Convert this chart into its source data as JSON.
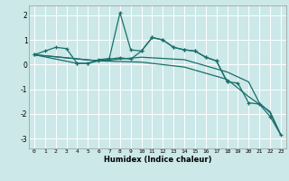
{
  "xlabel": "Humidex (Indice chaleur)",
  "bg_color": "#cce8e8",
  "grid_color": "#ffffff",
  "line_color": "#1a6e6a",
  "xlim": [
    -0.5,
    23.5
  ],
  "ylim": [
    -3.4,
    2.4
  ],
  "yticks": [
    -3,
    -2,
    -1,
    0,
    1,
    2
  ],
  "xticks": [
    0,
    1,
    2,
    3,
    4,
    5,
    6,
    7,
    8,
    9,
    10,
    11,
    12,
    13,
    14,
    15,
    16,
    17,
    18,
    19,
    20,
    21,
    22,
    23
  ],
  "series1_x": [
    0,
    1,
    2,
    3,
    4,
    5,
    6,
    7,
    8,
    9,
    10,
    11,
    12,
    13,
    14,
    15,
    16,
    17,
    18
  ],
  "series1_y": [
    0.4,
    0.55,
    0.7,
    0.65,
    0.05,
    0.05,
    0.2,
    0.25,
    2.1,
    0.6,
    0.55,
    1.1,
    1.0,
    0.7,
    0.6,
    0.55,
    0.3,
    0.15,
    -0.7
  ],
  "series2_x": [
    0,
    4,
    5,
    6,
    7,
    8,
    9,
    10,
    11,
    12,
    13,
    14,
    15,
    16,
    17,
    18,
    19,
    20,
    21,
    22,
    23
  ],
  "series2_y": [
    0.4,
    0.05,
    0.05,
    0.15,
    0.22,
    0.28,
    0.22,
    0.55,
    1.1,
    1.0,
    0.7,
    0.6,
    0.55,
    0.3,
    0.15,
    -0.7,
    -0.75,
    -1.55,
    -1.6,
    -2.1,
    -2.85
  ],
  "series3_x": [
    0,
    6,
    10,
    14,
    18,
    20,
    21,
    22,
    23
  ],
  "series3_y": [
    0.4,
    0.15,
    0.3,
    0.2,
    -0.3,
    -0.7,
    -1.55,
    -1.95,
    -2.85
  ],
  "series4_x": [
    0,
    6,
    10,
    14,
    18,
    20,
    21,
    22,
    23
  ],
  "series4_y": [
    0.4,
    0.15,
    0.1,
    -0.1,
    -0.6,
    -1.3,
    -1.6,
    -1.9,
    -2.85
  ]
}
